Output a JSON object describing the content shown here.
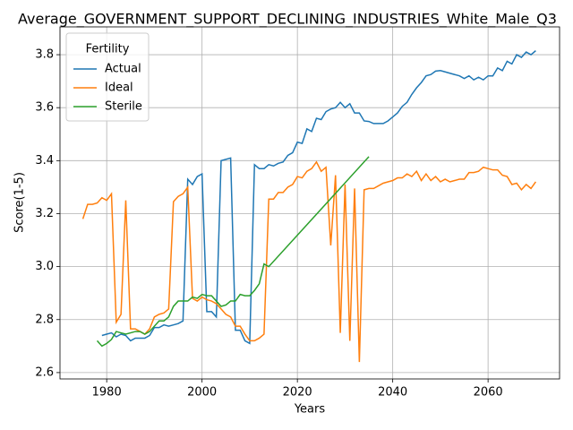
{
  "chart_data": {
    "type": "line",
    "title": "Average_GOVERNMENT_SUPPORT_DECLINING_INDUSTRIES_White_Male_Q3",
    "xlabel": "Years",
    "ylabel": "Score(1-5)",
    "legend_title": "Fertility",
    "legend": "upper left",
    "grid": true,
    "xlim": [
      1970.2,
      2075
    ],
    "ylim": [
      2.576,
      3.905
    ],
    "xticks": [
      1980,
      2000,
      2020,
      2040,
      2060
    ],
    "yticks": [
      2.6,
      2.8,
      {
        "value": 3,
        "label": "3.0"
      },
      3.2,
      3.4,
      3.6,
      3.8
    ],
    "series": [
      {
        "name": "Actual",
        "color": "#1f77b4",
        "x": [
          1979,
          1980,
          1981,
          1982,
          1983,
          1984,
          1985,
          1986,
          1987,
          1988,
          1989,
          1990,
          1991,
          1992,
          1993,
          1994,
          1995,
          1996,
          1997,
          1998,
          1999,
          2000,
          2001,
          2002,
          2003,
          2004,
          2005,
          2006,
          2007,
          2008,
          2009,
          2010,
          2011,
          2012,
          2013,
          2014,
          2015,
          2016,
          2017,
          2018,
          2019,
          2020,
          2021,
          2022,
          2023,
          2024,
          2025,
          2026,
          2027,
          2028,
          2029,
          2030,
          2031,
          2032,
          2033,
          2034,
          2035,
          2036,
          2037,
          2038,
          2039,
          2040,
          2041,
          2042,
          2043,
          2044,
          2045,
          2046,
          2047,
          2048,
          2049,
          2050,
          2051,
          2052,
          2053,
          2054,
          2055,
          2056,
          2057,
          2058,
          2059,
          2060,
          2061,
          2062,
          2063,
          2064,
          2065,
          2066,
          2067,
          2068,
          2069,
          2070
        ],
        "values": [
          2.74,
          2.745,
          2.75,
          2.735,
          2.745,
          2.74,
          2.72,
          2.73,
          2.73,
          2.73,
          2.74,
          2.77,
          2.77,
          2.78,
          2.775,
          2.78,
          2.785,
          2.795,
          3.33,
          3.31,
          3.34,
          3.35,
          2.83,
          2.83,
          2.81,
          3.4,
          3.405,
          3.41,
          2.76,
          2.76,
          2.72,
          2.71,
          3.385,
          3.37,
          3.37,
          3.385,
          3.38,
          3.39,
          3.395,
          3.42,
          3.43,
          3.47,
          3.465,
          3.52,
          3.51,
          3.56,
          3.555,
          3.585,
          3.595,
          3.6,
          3.62,
          3.6,
          3.615,
          3.58,
          3.58,
          3.55,
          3.548,
          3.54,
          3.54,
          3.54,
          3.55,
          3.565,
          3.58,
          3.605,
          3.62,
          3.65,
          3.675,
          3.695,
          3.72,
          3.725,
          3.738,
          3.74,
          3.735,
          3.73,
          3.725,
          3.72,
          3.71,
          3.72,
          3.705,
          3.715,
          3.705,
          3.72,
          3.72,
          3.75,
          3.74,
          3.775,
          3.765,
          3.8,
          3.79,
          3.81,
          3.8,
          3.815
        ]
      },
      {
        "name": "Ideal",
        "color": "#ff7f0e",
        "x": [
          1975,
          1976,
          1977,
          1978,
          1979,
          1980,
          1981,
          1982,
          1983,
          1984,
          1985,
          1986,
          1987,
          1988,
          1989,
          1990,
          1991,
          1992,
          1993,
          1994,
          1995,
          1996,
          1997,
          1998,
          1999,
          2000,
          2001,
          2002,
          2003,
          2004,
          2005,
          2006,
          2007,
          2008,
          2009,
          2010,
          2011,
          2012,
          2013,
          2014,
          2015,
          2016,
          2017,
          2018,
          2019,
          2020,
          2021,
          2022,
          2023,
          2024,
          2025,
          2026,
          2027,
          2028,
          2029,
          2030,
          2031,
          2032,
          2033,
          2034,
          2035,
          2036,
          2037,
          2038,
          2039,
          2040,
          2041,
          2042,
          2043,
          2044,
          2045,
          2046,
          2047,
          2048,
          2049,
          2050,
          2051,
          2052,
          2053,
          2054,
          2055,
          2056,
          2057,
          2058,
          2059,
          2060,
          2061,
          2062,
          2063,
          2064,
          2065,
          2066,
          2067,
          2068,
          2069,
          2070
        ],
        "values": [
          3.18,
          3.235,
          3.235,
          3.24,
          3.26,
          3.25,
          3.275,
          2.79,
          2.82,
          3.25,
          2.765,
          2.765,
          2.755,
          2.745,
          2.765,
          2.81,
          2.82,
          2.825,
          2.84,
          3.245,
          3.265,
          3.275,
          3.3,
          2.88,
          2.87,
          2.885,
          2.875,
          2.87,
          2.86,
          2.84,
          2.82,
          2.81,
          2.775,
          2.775,
          2.745,
          2.72,
          2.72,
          2.73,
          2.745,
          3.255,
          3.255,
          3.28,
          3.28,
          3.3,
          3.31,
          3.34,
          3.335,
          3.36,
          3.37,
          3.395,
          3.36,
          3.375,
          3.08,
          3.345,
          2.75,
          3.31,
          2.72,
          3.295,
          2.64,
          3.29,
          3.295,
          3.295,
          3.305,
          3.315,
          3.32,
          3.325,
          3.335,
          3.335,
          3.35,
          3.34,
          3.36,
          3.325,
          3.35,
          3.325,
          3.34,
          3.32,
          3.33,
          3.32,
          3.325,
          3.33,
          3.33,
          3.355,
          3.355,
          3.36,
          3.375,
          3.37,
          3.365,
          3.365,
          3.345,
          3.34,
          3.31,
          3.315,
          3.29,
          3.31,
          3.295,
          3.32
        ]
      },
      {
        "name": "Sterile",
        "color": "#2ca02c",
        "x": [
          1978,
          1979,
          1980,
          1981,
          1982,
          1983,
          1984,
          1985,
          1986,
          1987,
          1988,
          1989,
          1990,
          1991,
          1992,
          1993,
          1994,
          1995,
          1996,
          1997,
          1998,
          1999,
          2000,
          2001,
          2002,
          2003,
          2004,
          2005,
          2006,
          2007,
          2008,
          2009,
          2010,
          2011,
          2012,
          2013,
          2014,
          2035
        ],
        "values": [
          2.72,
          2.7,
          2.71,
          2.725,
          2.755,
          2.75,
          2.745,
          2.75,
          2.755,
          2.755,
          2.745,
          2.755,
          2.775,
          2.795,
          2.795,
          2.81,
          2.85,
          2.87,
          2.87,
          2.87,
          2.885,
          2.88,
          2.895,
          2.89,
          2.89,
          2.87,
          2.85,
          2.855,
          2.87,
          2.87,
          2.895,
          2.89,
          2.89,
          2.91,
          2.935,
          3.01,
          3.0,
          3.415
        ]
      }
    ]
  }
}
